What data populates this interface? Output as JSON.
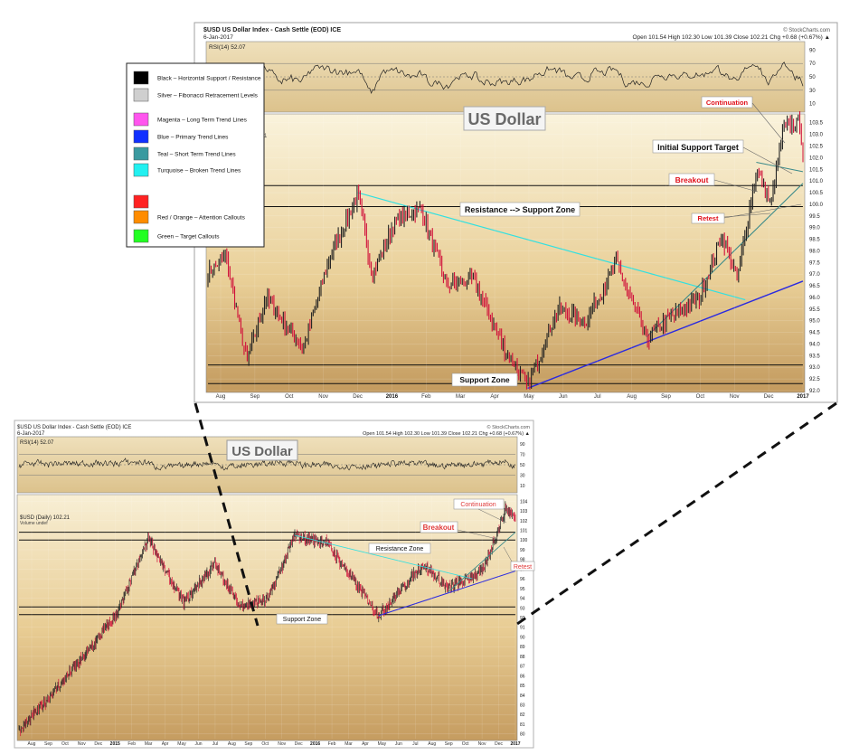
{
  "colors": {
    "bg_light": "#f5ecd4",
    "bg_dark": "#c9a36b",
    "price_up": "#222222",
    "price_down": "#d0103a",
    "rsi_fill": "#3b5a2a",
    "turquoise": "#33e0e0",
    "blue": "#2a2ae0",
    "teal": "#3a8a8a",
    "red_callout": "#e0101a"
  },
  "legend": {
    "items": [
      {
        "color": "#000000",
        "label": "Black – Horizontal Support / Resistance"
      },
      {
        "color": "#cfcfcf",
        "label": "Silver – Fibonacci Retracement Levels"
      },
      {
        "color": "#ff55ee",
        "label": "Magenta – Long Term Trend Lines"
      },
      {
        "color": "#1030ff",
        "label": "Blue – Primary Trend Lines"
      },
      {
        "color": "#3a9aa0",
        "label": "Teal – Short Term Trend Lines"
      },
      {
        "color": "#22f0f0",
        "label": "Turquoise – Broken Trend Lines"
      },
      {
        "color": "#ff2222",
        "label": ""
      },
      {
        "color": "#ff8c00",
        "label": "Red / Orange – Attention Callouts"
      },
      {
        "color": "#22ff22",
        "label": "Green – Target Callouts"
      }
    ]
  },
  "top_chart": {
    "header_title": "$USD US Dollar Index - Cash Settle (EOD) ICE",
    "header_date": "6-Jan-2017",
    "header_ohlc": "Open 101.54  High 102.30  Low 101.39  Close 102.21  Chg +0.68 (+0.67%) ▲",
    "watermark": "© StockCharts.com",
    "rsi_label": "RSI(14) 52.07",
    "big_title": "US Dollar",
    "stray_label": "1",
    "rsi_ticks": [
      "90",
      "70",
      "50",
      "30",
      "10"
    ],
    "price_ticks": [
      "103.5",
      "103.0",
      "102.5",
      "102.0",
      "101.5",
      "101.0",
      "100.5",
      "100.0",
      "99.5",
      "99.0",
      "98.5",
      "98.0",
      "97.5",
      "97.0",
      "96.5",
      "96.0",
      "95.5",
      "95.0",
      "94.5",
      "94.0",
      "93.5",
      "93.0",
      "92.5",
      "92.0"
    ],
    "x_ticks": [
      "Aug",
      "Sep",
      "Oct",
      "Nov",
      "Dec",
      "2016",
      "Feb",
      "Mar",
      "Apr",
      "May",
      "Jun",
      "Jul",
      "Aug",
      "Sep",
      "Oct",
      "Nov",
      "Dec",
      "2017"
    ],
    "annotations": {
      "continuation": "Continuation",
      "initial_target": "Initial Support Target",
      "breakout": "Breakout",
      "resistance_support": "Resistance --> Support Zone",
      "retest": "Retest",
      "support_zone": "Support Zone"
    }
  },
  "bottom_chart": {
    "header_title": "$USD US Dollar Index - Cash Settle (EOD) ICE",
    "header_date": "6-Jan-2017",
    "header_ohlc": "Open 101.54  High 102.30  Low 101.39  Close 102.21  Chg +0.68 (+0.67%) ▲",
    "watermark": "© StockCharts.com",
    "rsi_label": "RSI(14) 52.07",
    "big_title": "US Dollar",
    "price_label": "$USD (Daily) 102.21",
    "volume_label": "Volume undef",
    "rsi_ticks": [
      "90",
      "70",
      "50",
      "30",
      "10"
    ],
    "price_ticks": [
      "104",
      "103",
      "102",
      "101",
      "100",
      "99",
      "98",
      "97",
      "96",
      "95",
      "94",
      "93",
      "92",
      "91",
      "90",
      "89",
      "88",
      "87",
      "86",
      "85",
      "84",
      "83",
      "82",
      "81",
      "80"
    ],
    "x_ticks": [
      "Aug",
      "Sep",
      "Oct",
      "Nov",
      "Dec",
      "2015",
      "Feb",
      "Mar",
      "Apr",
      "May",
      "Jun",
      "Jul",
      "Aug",
      "Sep",
      "Oct",
      "Nov",
      "Dec",
      "2016",
      "Feb",
      "Mar",
      "Apr",
      "May",
      "Jun",
      "Jul",
      "Aug",
      "Sep",
      "Oct",
      "Nov",
      "Dec",
      "2017"
    ],
    "annotations": {
      "continuation": "Continuation",
      "breakout": "Breakout",
      "resistance_zone": "Resistance Zone",
      "retest": "Retest",
      "support_zone": "Support Zone"
    }
  },
  "chart_data": [
    {
      "type": "line",
      "title": "US Dollar",
      "series": [
        {
          "name": "$USD (Daily)",
          "points": [
            [
              "2015-07-20",
              97.0
            ],
            [
              "2015-08-05",
              97.8
            ],
            [
              "2015-08-24",
              93.2
            ],
            [
              "2015-09-10",
              96.0
            ],
            [
              "2015-10-14",
              93.8
            ],
            [
              "2015-11-05",
              97.5
            ],
            [
              "2015-12-02",
              100.4
            ],
            [
              "2015-12-15",
              97.0
            ],
            [
              "2016-01-05",
              99.3
            ],
            [
              "2016-01-28",
              99.8
            ],
            [
              "2016-02-20",
              96.5
            ],
            [
              "2016-03-15",
              96.8
            ],
            [
              "2016-04-10",
              94.0
            ],
            [
              "2016-05-03",
              92.2
            ],
            [
              "2016-05-30",
              95.5
            ],
            [
              "2016-06-25",
              95.0
            ],
            [
              "2016-07-22",
              97.5
            ],
            [
              "2016-08-18",
              94.2
            ],
            [
              "2016-09-05",
              95.0
            ],
            [
              "2016-10-05",
              96.0
            ],
            [
              "2016-10-25",
              98.7
            ],
            [
              "2016-11-08",
              96.8
            ],
            [
              "2016-11-25",
              101.5
            ],
            [
              "2016-12-08",
              100.0
            ],
            [
              "2016-12-20",
              103.3
            ],
            [
              "2017-01-03",
              103.5
            ],
            [
              "2017-01-06",
              102.2
            ]
          ]
        }
      ],
      "ylim": [
        92.0,
        103.8
      ],
      "levels": {
        "resistance_support_zone": [
          99.9,
          100.8
        ],
        "support_zone": [
          92.3,
          93.1
        ]
      }
    },
    {
      "type": "line",
      "title": "US Dollar",
      "series": [
        {
          "name": "$USD (Daily)",
          "points": [
            [
              "2014-07-20",
              80.2
            ],
            [
              "2014-09-15",
              84.0
            ],
            [
              "2014-11-15",
              88.0
            ],
            [
              "2015-01-15",
              92.5
            ],
            [
              "2015-03-13",
              100.3
            ],
            [
              "2015-04-10",
              97.0
            ],
            [
              "2015-05-15",
              93.5
            ],
            [
              "2015-07-10",
              97.5
            ],
            [
              "2015-08-24",
              93.2
            ],
            [
              "2015-10-14",
              93.8
            ],
            [
              "2015-12-02",
              100.4
            ],
            [
              "2016-01-28",
              99.8
            ],
            [
              "2016-05-03",
              92.2
            ],
            [
              "2016-07-22",
              97.5
            ],
            [
              "2016-09-05",
              95.0
            ],
            [
              "2016-11-08",
              96.8
            ],
            [
              "2016-12-20",
              103.3
            ],
            [
              "2017-01-06",
              102.2
            ]
          ]
        }
      ],
      "ylim": [
        79.5,
        104.5
      ],
      "levels": {
        "resistance_zone": [
          100.0,
          100.8
        ],
        "support_zone": [
          92.3,
          93.1
        ]
      }
    }
  ]
}
